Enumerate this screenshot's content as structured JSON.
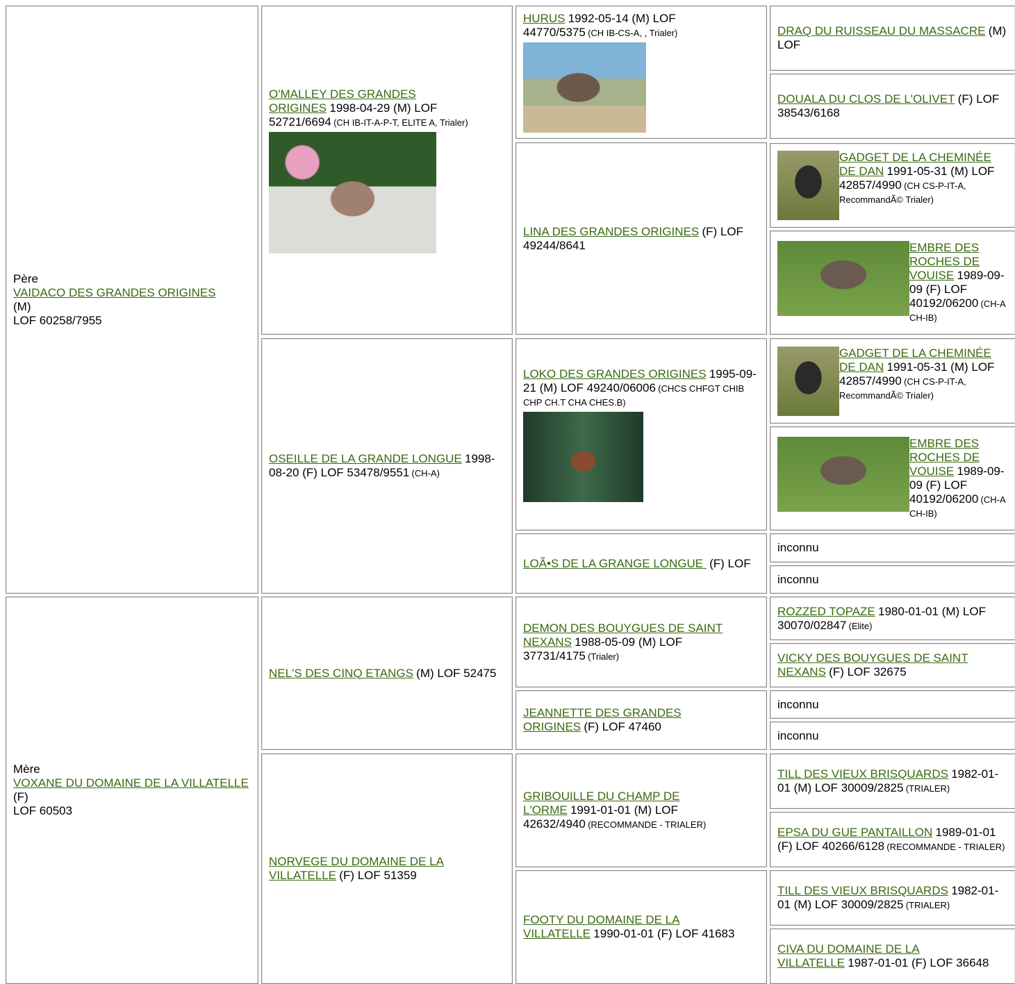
{
  "columns": [
    [
      {
        "label": "Père",
        "link": "VAIDACO DES GRANDES ORIGINES",
        "lines": [
          "(M)",
          "LOF 60258/7955"
        ]
      },
      {
        "label": "Mère",
        "link": "VOXANE DU DOMAINE DE LA VILLATELLE",
        "lines": [
          "(F)",
          "LOF 60503"
        ]
      }
    ],
    [
      {
        "link": "O'MALLEY DES GRANDES ORIGINES",
        "text": "1998-04-29 (M) LOF 52721/6694",
        "small": "(CH IB-IT-A-P-T, ELITE A, Trialer)"
      },
      {
        "link": "OSEILLE DE LA GRANDE LONGUE",
        "text": "1998-08-20 (F) LOF 53478/9551",
        "small": "(CH-A)"
      },
      {
        "link": "NEL'S DES CINQ ETANGS",
        "text": "(M) LOF 52475"
      },
      {
        "link": "NORVEGE DU DOMAINE DE LA VILLATELLE",
        "text": "(F) LOF 51359"
      }
    ],
    [
      {
        "link": "HURUS",
        "text": "1992-05-14 (M) LOF 44770/5375",
        "small": "(CH IB-CS-A, , Trialer)"
      },
      {
        "link": "LINA DES GRANDES ORIGINES",
        "text": "(F) LOF 49244/8641"
      },
      {
        "link": "LOKO DES GRANDES ORIGINES",
        "text": "1995-09-21 (M) LOF 49240/06006",
        "small": "(CHCS CHFGT CHIB CHP CH.T CHA CHES.B)"
      },
      {
        "link": "LOÃ•S DE LA GRANGE LONGUE ",
        "text": "(F) LOF"
      },
      {
        "link": "DEMON DES BOUYGUES DE SAINT NEXANS",
        "text": "1988-05-09 (M) LOF 37731/4175",
        "small": "(Trialer)"
      },
      {
        "link": "JEANNETTE DES GRANDES ORIGINES",
        "text": "(F) LOF 47460"
      },
      {
        "link": "GRIBOUILLE DU CHAMP DE L'ORME",
        "text": "1991-01-01 (M) LOF 42632/4940",
        "small": "(RECOMMANDE - TRIALER)"
      },
      {
        "link": "FOOTY DU DOMAINE DE LA VILLATELLE",
        "text": "1990-01-01 (F) LOF 41683"
      }
    ],
    [
      {
        "link": "DRAQ DU RUISSEAU DU MASSACRE",
        "text": "(M) LOF"
      },
      {
        "link": "DOUALA DU CLOS DE L'OLIVET",
        "text": "(F) LOF 38543/6168"
      },
      {
        "link": "GADGET DE LA CHEMINÉE DE DAN",
        "text": "1991-05-31 (M) LOF 42857/4990",
        "small": "(CH CS-P-IT-A, RecommandÃ© Trialer)"
      },
      {
        "link": "EMBRE DES ROCHES DE VOUISE",
        "text": "1989-09-09 (F) LOF 40192/06200",
        "small": "(CH-A CH-IB)"
      },
      {
        "link": "GADGET DE LA CHEMINÉE DE DAN",
        "text": "1991-05-31 (M) LOF 42857/4990",
        "small": "(CH CS-P-IT-A, RecommandÃ© Trialer)"
      },
      {
        "link": "EMBRE DES ROCHES DE VOUISE",
        "text": "1989-09-09 (F) LOF 40192/06200",
        "small": "(CH-A CH-IB)"
      },
      {
        "text": "inconnu"
      },
      {
        "text": "inconnu"
      },
      {
        "link": "ROZZED TOPAZE",
        "text": "1980-01-01 (M) LOF 30070/02847",
        "small": "(Elite)"
      },
      {
        "link": "VICKY DES BOUYGUES DE SAINT NEXANS",
        "text": "(F) LOF 32675"
      },
      {
        "text": "inconnu"
      },
      {
        "text": "inconnu"
      },
      {
        "link": "TILL DES VIEUX BRISQUARDS",
        "text": "1982-01-01 (M) LOF 30009/2825",
        "small": "(TRIALER)"
      },
      {
        "link": "EPSA DU GUE PANTAILLON",
        "text": "1989-01-01 (F) LOF 40266/6128",
        "small": "(RECOMMANDE - TRIALER)"
      },
      {
        "link": "TILL DES VIEUX BRISQUARDS",
        "text": "1982-01-01 (M) LOF 30009/2825",
        "small": "(TRIALER)"
      },
      {
        "link": "CIVA DU DOMAINE DE LA VILLATELLE",
        "text": "1987-01-01 (F) LOF 36648"
      }
    ]
  ]
}
